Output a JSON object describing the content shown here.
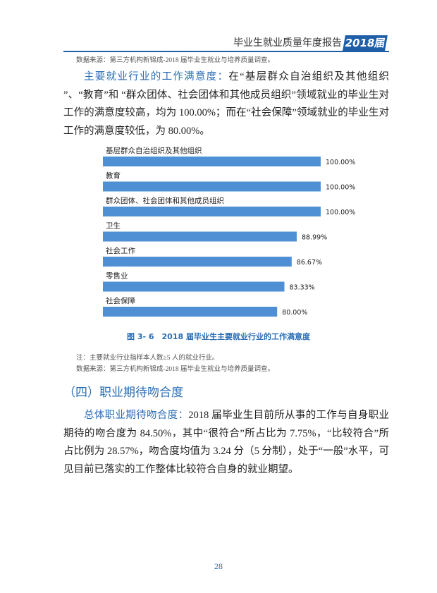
{
  "header": {
    "title": "毕业生就业质量年度报告",
    "badge": "2018届"
  },
  "source_top": "数据来源：第三方机构新锦成-2018 届毕业生就业与培养质量调查。",
  "paragraph1": {
    "lead": "主要就业行业的工作满意度：",
    "text": "在“基层群众自治组织及其他组织 ”、“教育”和 “群众团体、社会团体和其他成员组织”领域就业的毕业生对工作的满意度较高，均为 100.00%；而在“社会保障”领域就业的毕业生对工作的满意度较低，为 80.00%。"
  },
  "chart_data": {
    "type": "bar",
    "orientation": "horizontal",
    "color": "#4f90d4",
    "categories": [
      "基层群众自治组织及其他组织",
      "教育",
      "群众团体、社会团体和其他成员组织",
      "卫生",
      "社会工作",
      "零售业",
      "社会保障"
    ],
    "values": [
      100,
      100,
      100,
      88.99,
      86.67,
      83.33,
      80
    ],
    "value_labels": [
      "100.00%",
      "100.00%",
      "100.00%",
      "88.99%",
      "86.67%",
      "83.33%",
      "80.00%"
    ],
    "xlim": [
      0,
      100
    ],
    "caption": "图 3- 6　2018 届毕业生主要就业行业的工作满意度"
  },
  "notes": [
    "注：主要就业行业指样本人数≥5 人的就业行业。",
    "数据来源：第三方机构新锦成-2018 届毕业生就业与培养质量调查。"
  ],
  "section_heading": "（四）职业期待吻合度",
  "paragraph2": {
    "lead": "总体职业期待吻合度：",
    "text": "2018 届毕业生目前所从事的工作与自身职业期待的吻合度为 84.50%，其中“很符合”所占比为 7.75%，“比较符合”所占比例为 28.57%，吻合度均值为 3.24 分（5 分制），处于“一般”水平，可见目前已落实的工作整体比较符合自身的就业期望。"
  },
  "page_number": "28"
}
